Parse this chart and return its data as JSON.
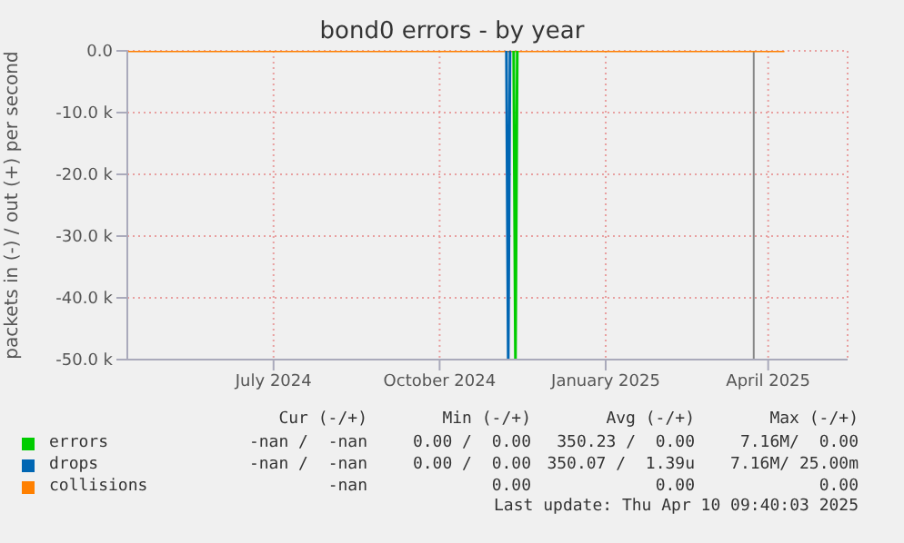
{
  "chart_data": {
    "type": "line",
    "title": "bond0 errors - by year",
    "ylabel": "packets in (-) / out (+) per second",
    "x": [
      "2024-04-11",
      "2025-04-10"
    ],
    "series": [
      {
        "name": "errors",
        "color": "#00cc00",
        "x": [
          "2024-11-11",
          "2024-11-12",
          "2024-11-13"
        ],
        "values": [
          0,
          -50000,
          0
        ]
      },
      {
        "name": "drops",
        "color": "#0066b3",
        "x": [
          "2024-11-07",
          "2024-11-08",
          "2024-11-09"
        ],
        "values": [
          0,
          -50000,
          0
        ]
      },
      {
        "name": "collisions",
        "color": "#ff8000",
        "values": [
          0,
          0
        ]
      }
    ],
    "xlim": [
      "2024-04-11",
      "2025-05-15"
    ],
    "xticks": [
      {
        "value": "2024-07-01",
        "label": "July 2024"
      },
      {
        "value": "2024-10-01",
        "label": "October 2024"
      },
      {
        "value": "2025-01-01",
        "label": "January 2025"
      },
      {
        "value": "2025-04-01",
        "label": "April 2025"
      }
    ],
    "ylim": [
      -50000,
      0
    ],
    "yticks": [
      {
        "value": -50000,
        "label": "-50.0 k"
      },
      {
        "value": -40000,
        "label": "-40.0 k"
      },
      {
        "value": -30000,
        "label": "-30.0 k"
      },
      {
        "value": -20000,
        "label": "-20.0 k"
      },
      {
        "value": -10000,
        "label": "-10.0 k"
      },
      {
        "value": 0,
        "label": "0.0"
      }
    ],
    "ref_lines": [
      {
        "axis": "x",
        "value": "2025-03-24",
        "color": "#888888"
      }
    ],
    "grid": true,
    "legend": "bottom",
    "marker": "none",
    "line_style": "solid",
    "annotations": [
      "Cur (-/+)",
      "Min (-/+)",
      "Avg (-/+)",
      "Max (-/+)",
      "-nan /  -nan",
      "0.00 /  0.00",
      "350.23 /  0.00",
      "7.16M/  0.00",
      "-nan /  -nan",
      "0.00 /  0.00",
      "350.07 /  1.39u",
      "7.16M/ 25.00m",
      "-nan",
      "0.00",
      "0.00",
      "0.00",
      "Last update: Thu Apr 10 09:40:03 2025"
    ]
  }
}
